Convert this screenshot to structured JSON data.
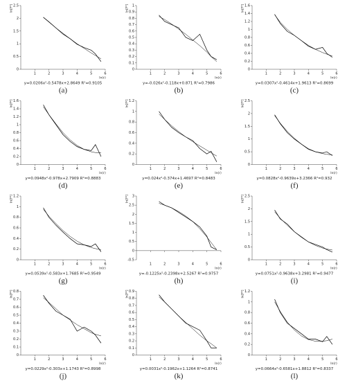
{
  "chart_data": [
    {
      "type": "line",
      "label": "(a)",
      "equation": "y=0.0206x²-0.5478x+2.8649   R²=0.9105",
      "y_label": "ln[F²]",
      "x_label": "ln(r)",
      "x": [
        1.6,
        2,
        2.5,
        3,
        3.5,
        4,
        4.5,
        5,
        5.3,
        5.7
      ],
      "series": [
        {
          "color": "#000000",
          "values": [
            2.04,
            1.86,
            1.62,
            1.38,
            1.2,
            0.98,
            0.85,
            0.75,
            0.6,
            0.3
          ]
        },
        {
          "color": "#000000",
          "values": [
            2.04,
            1.85,
            1.62,
            1.41,
            1.2,
            1.0,
            0.82,
            0.64,
            0.54,
            0.41
          ]
        }
      ],
      "xlim": [
        0,
        6
      ],
      "xticks": [
        1,
        2,
        3,
        4,
        5,
        6
      ],
      "ylim": [
        0,
        2.5
      ],
      "yticks": [
        0,
        0.5,
        1,
        1.5,
        2,
        2.5
      ]
    },
    {
      "type": "line",
      "label": "(b)",
      "equation": "y=-0.026x²-0.118x+0.871   R²=0.7986",
      "y_label": "ln[F²]",
      "x_label": "ln(r)",
      "x": [
        1.6,
        2,
        2.5,
        3,
        3.5,
        4,
        4.5,
        5,
        5.3,
        5.7
      ],
      "series": [
        {
          "color": "#000000",
          "values": [
            0.85,
            0.75,
            0.7,
            0.65,
            0.5,
            0.45,
            0.55,
            0.3,
            0.2,
            0.15
          ]
        },
        {
          "color": "#000000",
          "values": [
            0.83,
            0.78,
            0.71,
            0.63,
            0.55,
            0.46,
            0.37,
            0.27,
            0.2,
            0.12
          ]
        }
      ],
      "xlim": [
        0,
        6
      ],
      "xticks": [
        1,
        2,
        3,
        4,
        5,
        6
      ],
      "ylim": [
        0,
        1
      ],
      "yticks": [
        0,
        0.1,
        0.2,
        0.3,
        0.4,
        0.5,
        0.6,
        0.7,
        0.8,
        0.9,
        1
      ]
    },
    {
      "type": "line",
      "label": "(c)",
      "equation": "y=0.0307x²-0.4614x+1.9613   R²=0.8699",
      "y_label": "ln[F²]",
      "x_label": "ln(r)",
      "x": [
        1.6,
        2,
        2.5,
        3,
        3.5,
        4,
        4.5,
        5,
        5.3,
        5.7
      ],
      "series": [
        {
          "color": "#000000",
          "values": [
            1.38,
            1.15,
            0.95,
            0.85,
            0.72,
            0.58,
            0.5,
            0.55,
            0.4,
            0.3
          ]
        },
        {
          "color": "#000000",
          "values": [
            1.37,
            1.18,
            1.0,
            0.85,
            0.72,
            0.6,
            0.5,
            0.42,
            0.38,
            0.33
          ]
        }
      ],
      "xlim": [
        0,
        6
      ],
      "xticks": [
        1,
        2,
        3,
        4,
        5,
        6
      ],
      "ylim": [
        0,
        1.6
      ],
      "yticks": [
        0,
        0.2,
        0.4,
        0.6,
        0.8,
        1,
        1.2,
        1.4,
        1.6
      ]
    },
    {
      "type": "line",
      "label": "(d)",
      "equation": "y=0.0948x²-0.978x+2.7909   R²=0.8883",
      "y_label": "ln[F²]",
      "x_label": "ln(r)",
      "x": [
        1.6,
        2,
        2.5,
        3,
        3.5,
        4,
        4.5,
        5,
        5.3,
        5.7
      ],
      "series": [
        {
          "color": "#000000",
          "values": [
            1.5,
            1.25,
            1.0,
            0.75,
            0.58,
            0.45,
            0.38,
            0.35,
            0.5,
            0.2
          ]
        },
        {
          "color": "#000000",
          "values": [
            1.45,
            1.25,
            1.02,
            0.8,
            0.62,
            0.48,
            0.38,
            0.32,
            0.3,
            0.3
          ]
        }
      ],
      "xlim": [
        0,
        6
      ],
      "xticks": [
        1,
        2,
        3,
        4,
        5,
        6
      ],
      "ylim": [
        0,
        1.6
      ],
      "yticks": [
        0,
        0.2,
        0.4,
        0.6,
        0.8,
        1,
        1.2,
        1.4,
        1.6
      ]
    },
    {
      "type": "line",
      "label": "(e)",
      "equation": "y=0.024x²-0.374x+1.4697   R²=0.8483",
      "y_label": "ln[F²]",
      "x_label": "ln(r)",
      "x": [
        1.6,
        2,
        2.5,
        3,
        3.5,
        4,
        4.5,
        5,
        5.3,
        5.7
      ],
      "series": [
        {
          "color": "#000000",
          "values": [
            1.0,
            0.85,
            0.7,
            0.6,
            0.52,
            0.45,
            0.3,
            0.2,
            0.25,
            0.05
          ]
        },
        {
          "color": "#000000",
          "values": [
            0.95,
            0.85,
            0.73,
            0.62,
            0.52,
            0.43,
            0.35,
            0.27,
            0.22,
            0.16
          ]
        }
      ],
      "xlim": [
        0,
        6
      ],
      "xticks": [
        1,
        2,
        3,
        4,
        5,
        6
      ],
      "ylim": [
        0,
        1.2
      ],
      "yticks": [
        0,
        0.2,
        0.4,
        0.6,
        0.8,
        1,
        1.2
      ]
    },
    {
      "type": "line",
      "label": "(f)",
      "equation": "y=0.0828x²-0.9639x+3.2366   R²=0.932",
      "y_label": "ln[F²]",
      "x_label": "ln(r)",
      "x": [
        1.6,
        2,
        2.5,
        3,
        3.5,
        4,
        4.5,
        5,
        5.3,
        5.7
      ],
      "series": [
        {
          "color": "#000000",
          "values": [
            1.95,
            1.6,
            1.25,
            1.0,
            0.8,
            0.6,
            0.5,
            0.45,
            0.5,
            0.35
          ]
        },
        {
          "color": "#000000",
          "values": [
            1.92,
            1.62,
            1.3,
            1.03,
            0.8,
            0.62,
            0.5,
            0.43,
            0.4,
            0.38
          ]
        }
      ],
      "xlim": [
        0,
        6
      ],
      "xticks": [
        1,
        2,
        3,
        4,
        5,
        6
      ],
      "ylim": [
        0,
        2.5
      ],
      "yticks": [
        0,
        0.5,
        1,
        1.5,
        2,
        2.5
      ]
    },
    {
      "type": "line",
      "label": "(g)",
      "equation": "y=0.0539x²-0.583x+1.7685   R²=0.9549",
      "y_label": "ln[F²]",
      "x_label": "ln(r)",
      "x": [
        1.6,
        2,
        2.5,
        3,
        3.5,
        4,
        4.5,
        5,
        5.3,
        5.7
      ],
      "series": [
        {
          "color": "#000000",
          "values": [
            0.98,
            0.8,
            0.65,
            0.52,
            0.4,
            0.3,
            0.28,
            0.25,
            0.3,
            0.15
          ]
        },
        {
          "color": "#000000",
          "values": [
            0.95,
            0.82,
            0.68,
            0.55,
            0.44,
            0.35,
            0.28,
            0.23,
            0.21,
            0.19
          ]
        }
      ],
      "xlim": [
        0,
        6
      ],
      "xticks": [
        1,
        2,
        3,
        4,
        5,
        6
      ],
      "ylim": [
        0,
        1.2
      ],
      "yticks": [
        0,
        0.2,
        0.4,
        0.6,
        0.8,
        1,
        1.2
      ]
    },
    {
      "type": "line",
      "label": "(h)",
      "equation": "y=-0.1225x²-0.2398x+2.5267   R²=0.9757",
      "y_label": "ln[F²]",
      "x_label": "ln(r)",
      "x": [
        1.6,
        2,
        2.5,
        3,
        3.5,
        4,
        4.5,
        5,
        5.3,
        5.7
      ],
      "series": [
        {
          "color": "#000000",
          "values": [
            2.7,
            2.5,
            2.35,
            2.1,
            1.85,
            1.6,
            1.3,
            0.8,
            0.2,
            0.05
          ]
        },
        {
          "color": "#000000",
          "values": [
            2.6,
            2.5,
            2.35,
            2.15,
            1.9,
            1.6,
            1.2,
            0.75,
            0.45,
            0.05
          ]
        }
      ],
      "xlim": [
        0,
        6
      ],
      "xticks": [
        1,
        2,
        3,
        4,
        5,
        6
      ],
      "ylim": [
        -0.5,
        3
      ],
      "yticks": [
        -0.5,
        0,
        0.5,
        1,
        1.5,
        2,
        2.5,
        3
      ]
    },
    {
      "type": "line",
      "label": "(i)",
      "equation": "y=0.0751x²-0.9638x+3.2981   R²=0.9477",
      "y_label": "ln[F²]",
      "x_label": "ln(r)",
      "x": [
        1.6,
        2,
        2.5,
        3,
        3.5,
        4,
        4.5,
        5,
        5.3,
        5.7
      ],
      "series": [
        {
          "color": "#000000",
          "values": [
            1.95,
            1.6,
            1.4,
            1.1,
            0.9,
            0.7,
            0.6,
            0.5,
            0.4,
            0.3
          ]
        },
        {
          "color": "#000000",
          "values": [
            1.88,
            1.63,
            1.35,
            1.1,
            0.88,
            0.7,
            0.56,
            0.46,
            0.42,
            0.38
          ]
        }
      ],
      "xlim": [
        0,
        6
      ],
      "xticks": [
        1,
        2,
        3,
        4,
        5,
        6
      ],
      "ylim": [
        0,
        2.5
      ],
      "yticks": [
        0,
        0.5,
        1,
        1.5,
        2,
        2.5
      ]
    },
    {
      "type": "line",
      "label": "(j)",
      "equation": "y=0.0229x²-0.303x+1.1743   R²=0.8998",
      "y_label": "ln[F²]",
      "x_label": "ln(r)",
      "x": [
        1.6,
        2,
        2.5,
        3,
        3.5,
        4,
        4.5,
        5,
        5.3,
        5.7
      ],
      "series": [
        {
          "color": "#000000",
          "values": [
            0.75,
            0.65,
            0.55,
            0.5,
            0.45,
            0.3,
            0.35,
            0.3,
            0.25,
            0.15
          ]
        },
        {
          "color": "#000000",
          "values": [
            0.72,
            0.66,
            0.58,
            0.5,
            0.44,
            0.38,
            0.33,
            0.28,
            0.26,
            0.24
          ]
        }
      ],
      "xlim": [
        0,
        6
      ],
      "xticks": [
        1,
        2,
        3,
        4,
        5,
        6
      ],
      "ylim": [
        0,
        0.8
      ],
      "yticks": [
        0,
        0.1,
        0.2,
        0.3,
        0.4,
        0.5,
        0.6,
        0.7,
        0.8
      ]
    },
    {
      "type": "line",
      "label": "(k)",
      "equation": "y=0.0031x²-0.1962x+1.1264   R²=0.8741",
      "y_label": "ln[F²]",
      "x_label": "ln(r)",
      "x": [
        1.6,
        2,
        2.5,
        3,
        3.5,
        4,
        4.5,
        5,
        5.3,
        5.7
      ],
      "series": [
        {
          "color": "#000000",
          "values": [
            0.85,
            0.75,
            0.65,
            0.55,
            0.45,
            0.4,
            0.35,
            0.2,
            0.1,
            0.1
          ]
        },
        {
          "color": "#000000",
          "values": [
            0.82,
            0.75,
            0.65,
            0.55,
            0.46,
            0.37,
            0.28,
            0.2,
            0.16,
            0.1
          ]
        }
      ],
      "xlim": [
        0,
        6
      ],
      "xticks": [
        1,
        2,
        3,
        4,
        5,
        6
      ],
      "ylim": [
        0,
        0.9
      ],
      "yticks": [
        0,
        0.1,
        0.2,
        0.3,
        0.4,
        0.5,
        0.6,
        0.7,
        0.8,
        0.9
      ]
    },
    {
      "type": "line",
      "label": "(l)",
      "equation": "y=0.0664x²-0.6581x+1.8812   R²=0.8337",
      "y_label": "ln[F²]",
      "x_label": "ln(r)",
      "x": [
        1.6,
        2,
        2.5,
        3,
        3.5,
        4,
        4.5,
        5,
        5.3,
        5.7
      ],
      "series": [
        {
          "color": "#000000",
          "values": [
            1.05,
            0.8,
            0.6,
            0.5,
            0.4,
            0.3,
            0.3,
            0.25,
            0.35,
            0.2
          ]
        },
        {
          "color": "#000000",
          "values": [
            1.0,
            0.82,
            0.62,
            0.47,
            0.36,
            0.29,
            0.26,
            0.26,
            0.27,
            0.3
          ]
        }
      ],
      "xlim": [
        0,
        6
      ],
      "xticks": [
        1,
        2,
        3,
        4,
        5,
        6
      ],
      "ylim": [
        0,
        1.2
      ],
      "yticks": [
        0,
        0.2,
        0.4,
        0.6,
        0.8,
        1,
        1.2
      ]
    }
  ]
}
